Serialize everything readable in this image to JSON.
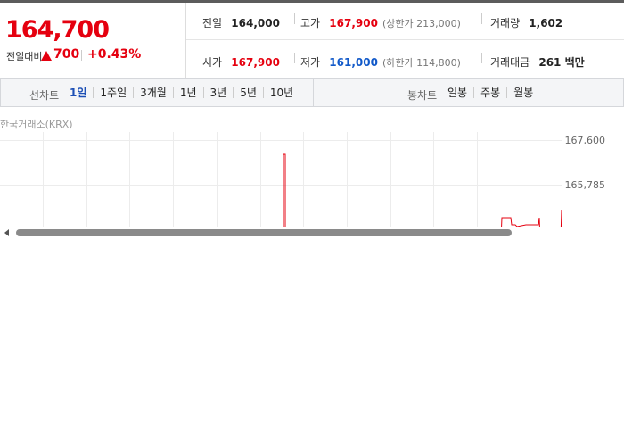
{
  "quote": {
    "price": "164,700",
    "change_label": "전일대비",
    "change": "700",
    "change_pct": "+0.43%"
  },
  "stats": [
    [
      {
        "label": "전일",
        "value": "164,000"
      },
      {
        "label": "고가",
        "value": "167,900",
        "note": "(상한가 213,000)"
      },
      {
        "label": "거래량",
        "value": "1,602"
      }
    ],
    [
      {
        "label": "시가",
        "value": "167,900"
      },
      {
        "label": "저가",
        "value": "161,000",
        "note": "(하한가 114,800)"
      },
      {
        "label": "거래대금",
        "value": "261 백만"
      }
    ]
  ],
  "tabs": {
    "line_label": "선차트",
    "line_periods": [
      "1일",
      "1주일",
      "3개월",
      "1년",
      "3년",
      "5년",
      "10년"
    ],
    "candle_label": "봉차트",
    "candle_periods": [
      "일봉",
      "주봉",
      "월봉"
    ]
  },
  "chart": {
    "source": "한국거래소(KRX)",
    "y_labels": [
      "167,600",
      "165,785"
    ]
  }
}
